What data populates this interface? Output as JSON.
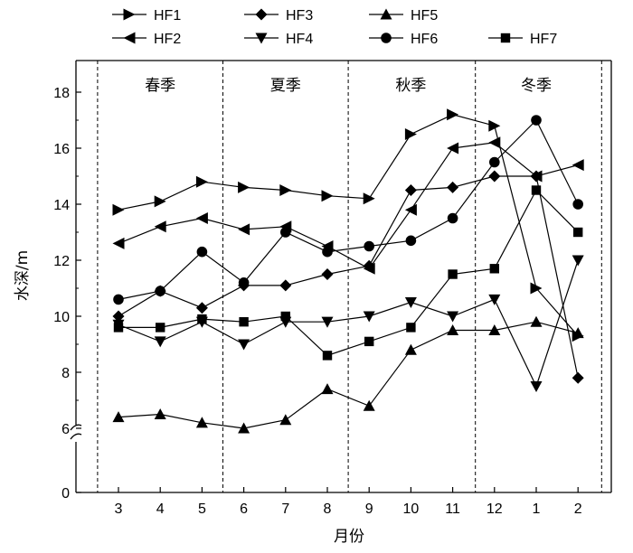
{
  "chart_data": {
    "type": "line",
    "xlabel": "月份",
    "ylabel": "水深/m",
    "x_ticks": [
      "3",
      "4",
      "5",
      "6",
      "7",
      "8",
      "9",
      "10",
      "11",
      "12",
      "1",
      "2"
    ],
    "y_ticks": [
      "0",
      "6",
      "8",
      "10",
      "12",
      "14",
      "16",
      "18"
    ],
    "ylim": [
      0,
      19
    ],
    "y_axis_break": [
      0,
      6
    ],
    "grid": false,
    "legend_position": "top",
    "seasons": [
      {
        "label": "春季",
        "months": [
          "3",
          "4",
          "5"
        ]
      },
      {
        "label": "夏季",
        "months": [
          "6",
          "7",
          "8"
        ]
      },
      {
        "label": "秋季",
        "months": [
          "9",
          "10",
          "11"
        ]
      },
      {
        "label": "冬季",
        "months": [
          "12",
          "1",
          "2"
        ]
      }
    ],
    "series": [
      {
        "name": "HF1",
        "marker": "triangle-right",
        "values": [
          13.8,
          14.1,
          14.8,
          14.6,
          14.5,
          14.3,
          14.2,
          16.5,
          17.2,
          16.8,
          11.0,
          9.3
        ]
      },
      {
        "name": "HF2",
        "marker": "triangle-left",
        "values": [
          12.6,
          13.2,
          13.5,
          13.1,
          13.2,
          12.5,
          11.7,
          13.8,
          16.0,
          16.2,
          15.0,
          15.4
        ]
      },
      {
        "name": "HF3",
        "marker": "diamond",
        "values": [
          10.0,
          10.9,
          10.3,
          11.1,
          11.1,
          11.5,
          11.8,
          14.5,
          14.6,
          15.0,
          15.0,
          7.8
        ]
      },
      {
        "name": "HF4",
        "marker": "triangle-down",
        "values": [
          9.7,
          9.1,
          9.8,
          9.0,
          9.8,
          9.8,
          10.0,
          10.5,
          10.0,
          10.6,
          7.5,
          12.0
        ]
      },
      {
        "name": "HF5",
        "marker": "triangle-up",
        "values": [
          6.4,
          6.5,
          6.2,
          6.0,
          6.3,
          7.4,
          6.8,
          8.8,
          9.5,
          9.5,
          9.8,
          9.4
        ]
      },
      {
        "name": "HF6",
        "marker": "circle",
        "values": [
          10.6,
          10.9,
          12.3,
          11.2,
          13.0,
          12.3,
          12.5,
          12.7,
          13.5,
          15.5,
          17.0,
          14.0
        ]
      },
      {
        "name": "HF7",
        "marker": "square",
        "values": [
          9.6,
          9.6,
          9.9,
          9.8,
          10.0,
          8.6,
          9.1,
          9.6,
          11.5,
          11.7,
          14.5,
          13.0
        ]
      }
    ],
    "legend_order": [
      "HF1",
      "HF3",
      "HF5",
      "HF2",
      "HF4",
      "HF6",
      "HF7"
    ]
  }
}
